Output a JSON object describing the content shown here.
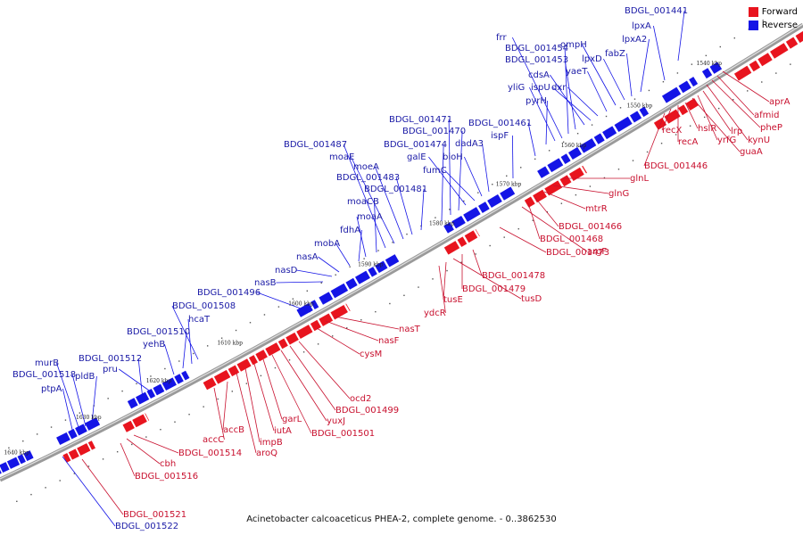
{
  "caption": "Acinetobacter calcoaceticus PHEA-2, complete genome. - 0..3862530",
  "legend": {
    "forward": "Forward",
    "reverse": "Reverse"
  },
  "colors": {
    "forward": "#e8141e",
    "reverse": "#1414e6",
    "forward_label": "#c8102e",
    "reverse_label": "#1a1aa6",
    "backbone": "#888888"
  },
  "kbp_ticks": [
    "1540 kbp",
    "1550 kbp",
    "1560 kbp",
    "1570 kbp",
    "1580 kbp",
    "1590 kbp",
    "1600 kbp",
    "1610 kbp",
    "1620 kbp",
    "1630 kbp",
    "1640 kbp"
  ],
  "reverse_labels": [
    "BDGL_001441",
    "lpxA",
    "lpxA2",
    "fabZ",
    "lpxD",
    "ompH",
    "yaeT",
    "dxr",
    "ispU",
    "cdsA",
    "BDGL_001453",
    "BDGL_001454",
    "frr",
    "yliG",
    "pyrH",
    "BDGL_001461",
    "ispF",
    "dadA3",
    "bioH",
    "fumC",
    "galE",
    "BDGL_001470",
    "BDGL_001471",
    "BDGL_001474",
    "BDGL_001481",
    "BDGL_001483",
    "moeA",
    "moaE",
    "BDGL_001487",
    "moaCB",
    "moaA",
    "fdhA",
    "mobA",
    "nasA",
    "nasD",
    "nasB",
    "BDGL_001496",
    "BDGL_001508",
    "hcaT",
    "BDGL_001510",
    "yehB",
    "pru",
    "BDGL_001512",
    "pldB",
    "BDGL_001518",
    "murB",
    "ptpA",
    "BDGL_001522"
  ],
  "forward_labels": [
    "aprA",
    "afmid",
    "pheP",
    "kynU",
    "lrp",
    "yrfG",
    "guaA",
    "hslR",
    "recA",
    "recX",
    "BDGL_001446",
    "glnL",
    "glnG",
    "mtrR",
    "BDGL_001466",
    "BDGL_001468",
    "argF",
    "BDGL_001473",
    "BDGL_001478",
    "BDGL_001479",
    "tusD",
    "tusE",
    "ydcR",
    "nasT",
    "nasF",
    "cysM",
    "ocd2",
    "BDGL_001499",
    "yuxJ",
    "BDGL_001501",
    "garL",
    "iutA",
    "impB",
    "aroQ",
    "accB",
    "accC",
    "BDGL_001514",
    "cbh",
    "BDGL_001516",
    "BDGL_001521"
  ]
}
